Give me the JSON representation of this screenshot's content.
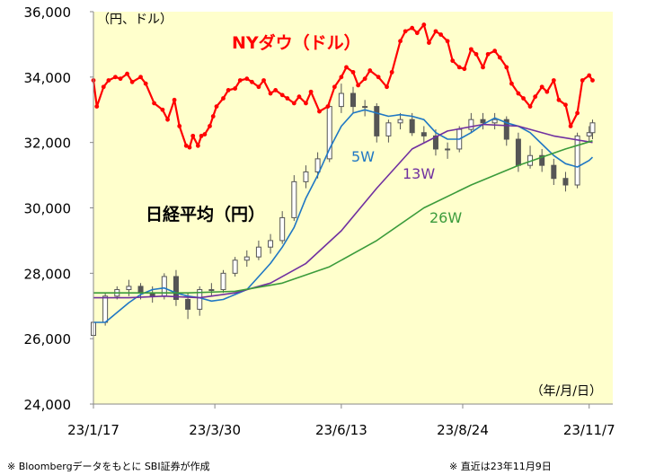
{
  "chart_data": {
    "type": "line",
    "ylim": [
      24000,
      36000
    ],
    "yticks": [
      24000,
      26000,
      28000,
      30000,
      32000,
      34000,
      36000
    ],
    "ytick_labels": [
      "24,000",
      "26,000",
      "28,000",
      "30,000",
      "32,000",
      "34,000",
      "36,000"
    ],
    "x_start": "2023-01-17",
    "x_end": "2023-11-21",
    "xticks": [
      "2023-01-17",
      "2023-03-30",
      "2023-06-13",
      "2023-08-24",
      "2023-11-07"
    ],
    "xtick_labels": [
      "23/1/17",
      "23/3/30",
      "23/6/13",
      "23/8/24",
      "23/11/7"
    ],
    "unit_label": "（円、ドル）",
    "date_format_label": "（年/月/日）",
    "grid": false,
    "background_color": "#ffffcc",
    "annotations": {
      "ny_dow": {
        "text": "NYダウ（ドル）",
        "color": "#ff0000"
      },
      "nikkei": {
        "text": "日経平均（円）",
        "color": "#000000"
      },
      "ma5": {
        "text": "5W",
        "color": "#1f77c4"
      },
      "ma13": {
        "text": "13W",
        "color": "#7030a0"
      },
      "ma26": {
        "text": "26W",
        "color": "#3b9b3b"
      }
    },
    "series": [
      {
        "name": "NYダウ（ドル）",
        "style": "line-markers",
        "color": "#ff0000",
        "x": [
          "2023-01-17",
          "2023-01-19",
          "2023-01-23",
          "2023-01-26",
          "2023-01-30",
          "2023-02-02",
          "2023-02-06",
          "2023-02-09",
          "2023-02-14",
          "2023-02-17",
          "2023-02-22",
          "2023-02-27",
          "2023-03-02",
          "2023-03-06",
          "2023-03-09",
          "2023-03-13",
          "2023-03-15",
          "2023-03-17",
          "2023-03-20",
          "2023-03-22",
          "2023-03-24",
          "2023-03-27",
          "2023-03-29",
          "2023-03-31",
          "2023-04-04",
          "2023-04-07",
          "2023-04-11",
          "2023-04-14",
          "2023-04-18",
          "2023-04-21",
          "2023-04-25",
          "2023-04-28",
          "2023-05-02",
          "2023-05-05",
          "2023-05-09",
          "2023-05-12",
          "2023-05-16",
          "2023-05-19",
          "2023-05-23",
          "2023-05-26",
          "2023-05-31",
          "2023-06-05",
          "2023-06-09",
          "2023-06-13",
          "2023-06-16",
          "2023-06-20",
          "2023-06-23",
          "2023-06-27",
          "2023-06-30",
          "2023-07-05",
          "2023-07-10",
          "2023-07-13",
          "2023-07-18",
          "2023-07-21",
          "2023-07-25",
          "2023-07-28",
          "2023-08-01",
          "2023-08-04",
          "2023-08-08",
          "2023-08-11",
          "2023-08-15",
          "2023-08-18",
          "2023-08-22",
          "2023-08-25",
          "2023-08-29",
          "2023-09-01",
          "2023-09-05",
          "2023-09-08",
          "2023-09-12",
          "2023-09-15",
          "2023-09-19",
          "2023-09-22",
          "2023-09-26",
          "2023-09-29",
          "2023-10-03",
          "2023-10-06",
          "2023-10-10",
          "2023-10-13",
          "2023-10-17",
          "2023-10-20",
          "2023-10-24",
          "2023-10-27",
          "2023-10-31",
          "2023-11-03",
          "2023-11-07",
          "2023-11-09"
        ],
        "values": [
          33900,
          33100,
          33700,
          33900,
          34000,
          33950,
          34100,
          33850,
          34000,
          33800,
          33200,
          33000,
          32700,
          33300,
          32500,
          31900,
          31850,
          32200,
          31900,
          32200,
          32250,
          32500,
          32800,
          33100,
          33350,
          33600,
          33650,
          33900,
          33950,
          33850,
          33700,
          33900,
          33500,
          33600,
          33450,
          33350,
          33200,
          33400,
          33200,
          33550,
          32950,
          33100,
          33700,
          34000,
          34300,
          34150,
          33750,
          33950,
          34200,
          34000,
          33700,
          34150,
          35100,
          35400,
          35500,
          35350,
          35600,
          35050,
          35400,
          35300,
          35100,
          34500,
          34300,
          34250,
          34850,
          34700,
          34300,
          34700,
          34800,
          34600,
          34300,
          33800,
          33500,
          33350,
          33100,
          33400,
          33700,
          33550,
          33900,
          33300,
          33150,
          32500,
          32900,
          33900,
          34050,
          33900
        ]
      },
      {
        "name": "5W",
        "style": "line",
        "color": "#1f77c4",
        "x": [
          "2023-01-17",
          "2023-01-24",
          "2023-01-31",
          "2023-02-07",
          "2023-02-14",
          "2023-02-21",
          "2023-02-28",
          "2023-03-07",
          "2023-03-14",
          "2023-03-21",
          "2023-03-28",
          "2023-04-04",
          "2023-04-11",
          "2023-04-18",
          "2023-04-25",
          "2023-05-02",
          "2023-05-09",
          "2023-05-16",
          "2023-05-23",
          "2023-05-30",
          "2023-06-06",
          "2023-06-13",
          "2023-06-20",
          "2023-06-27",
          "2023-07-04",
          "2023-07-11",
          "2023-07-18",
          "2023-07-25",
          "2023-08-01",
          "2023-08-08",
          "2023-08-15",
          "2023-08-22",
          "2023-08-29",
          "2023-09-05",
          "2023-09-12",
          "2023-09-19",
          "2023-09-26",
          "2023-10-03",
          "2023-10-10",
          "2023-10-17",
          "2023-10-24",
          "2023-10-31",
          "2023-11-07",
          "2023-11-09"
        ],
        "values": [
          26500,
          26500,
          26800,
          27100,
          27350,
          27500,
          27550,
          27400,
          27300,
          27250,
          27150,
          27200,
          27350,
          27500,
          27900,
          28300,
          28800,
          29400,
          30300,
          31000,
          31800,
          32500,
          32900,
          33000,
          32900,
          32800,
          32850,
          32800,
          32700,
          32300,
          32100,
          32100,
          32300,
          32550,
          32750,
          32600,
          32500,
          32300,
          31950,
          31600,
          31350,
          31250,
          31450,
          31550
        ]
      },
      {
        "name": "13W",
        "style": "line",
        "color": "#7030a0",
        "x": [
          "2023-01-17",
          "2023-02-07",
          "2023-02-28",
          "2023-03-21",
          "2023-04-11",
          "2023-05-02",
          "2023-05-23",
          "2023-06-13",
          "2023-07-04",
          "2023-07-25",
          "2023-08-15",
          "2023-09-05",
          "2023-09-26",
          "2023-10-17",
          "2023-11-09"
        ],
        "values": [
          27250,
          27250,
          27300,
          27250,
          27400,
          27700,
          28300,
          29300,
          30600,
          31800,
          32350,
          32550,
          32500,
          32200,
          32000
        ]
      },
      {
        "name": "26W",
        "style": "line",
        "color": "#3b9b3b",
        "x": [
          "2023-01-17",
          "2023-02-14",
          "2023-03-14",
          "2023-04-11",
          "2023-05-09",
          "2023-06-06",
          "2023-07-04",
          "2023-08-01",
          "2023-08-29",
          "2023-09-26",
          "2023-10-24",
          "2023-11-09"
        ],
        "values": [
          27400,
          27400,
          27400,
          27450,
          27700,
          28200,
          29000,
          30000,
          30700,
          31300,
          31800,
          32050
        ]
      },
      {
        "name": "日経平均（円）",
        "style": "candlestick",
        "color": "#555555",
        "x": [
          "2023-01-17",
          "2023-01-24",
          "2023-01-31",
          "2023-02-07",
          "2023-02-14",
          "2023-02-21",
          "2023-02-28",
          "2023-03-07",
          "2023-03-14",
          "2023-03-21",
          "2023-03-28",
          "2023-04-04",
          "2023-04-11",
          "2023-04-18",
          "2023-04-25",
          "2023-05-02",
          "2023-05-09",
          "2023-05-16",
          "2023-05-23",
          "2023-05-30",
          "2023-06-06",
          "2023-06-13",
          "2023-06-20",
          "2023-06-27",
          "2023-07-04",
          "2023-07-11",
          "2023-07-18",
          "2023-07-25",
          "2023-08-01",
          "2023-08-08",
          "2023-08-15",
          "2023-08-22",
          "2023-08-29",
          "2023-09-05",
          "2023-09-12",
          "2023-09-19",
          "2023-09-26",
          "2023-10-03",
          "2023-10-10",
          "2023-10-17",
          "2023-10-24",
          "2023-10-31",
          "2023-11-07",
          "2023-11-09"
        ],
        "open": [
          26100,
          26500,
          27300,
          27500,
          27600,
          27400,
          27300,
          27900,
          27200,
          26900,
          27500,
          27500,
          28000,
          28400,
          28500,
          28800,
          29000,
          29700,
          30800,
          31100,
          31500,
          33100,
          33500,
          33100,
          33100,
          32200,
          32600,
          32700,
          32300,
          32200,
          31800,
          31800,
          32400,
          32700,
          32600,
          32700,
          32100,
          31300,
          31600,
          31300,
          30900,
          30700,
          32200,
          32300
        ],
        "close": [
          26500,
          27300,
          27500,
          27600,
          27400,
          27300,
          27900,
          27200,
          26900,
          27500,
          27500,
          28000,
          28400,
          28500,
          28800,
          29000,
          29700,
          30800,
          31100,
          31500,
          33100,
          33500,
          33100,
          33100,
          32200,
          32600,
          32700,
          32300,
          32200,
          31800,
          31800,
          32400,
          32700,
          32600,
          32700,
          32100,
          31300,
          31600,
          31300,
          30900,
          30700,
          32200,
          32300,
          32600
        ],
        "high": [
          26700,
          27400,
          27600,
          27800,
          27700,
          27600,
          28000,
          28100,
          27400,
          27600,
          27700,
          28100,
          28500,
          28700,
          29000,
          29200,
          29900,
          31000,
          31300,
          31700,
          33300,
          33800,
          33700,
          33300,
          33200,
          32700,
          32900,
          32900,
          32500,
          32400,
          32000,
          32500,
          32900,
          32900,
          32900,
          32800,
          32300,
          31900,
          31800,
          31500,
          31100,
          32300,
          32500,
          32700
        ],
        "low": [
          25900,
          26400,
          27200,
          27300,
          27200,
          27100,
          27200,
          27000,
          26600,
          26700,
          27300,
          27400,
          27900,
          28200,
          28400,
          28600,
          28900,
          29600,
          30600,
          30900,
          31400,
          32900,
          32900,
          32800,
          32000,
          32000,
          32400,
          32200,
          32000,
          31600,
          31500,
          31700,
          32300,
          32400,
          32400,
          31900,
          31100,
          31200,
          31100,
          30700,
          30500,
          30600,
          32000,
          32100
        ]
      }
    ]
  },
  "footnotes": {
    "left": "※ Bloombergデータをもとに SBI証券が作成",
    "right": "※ 直近は23年11月9日"
  }
}
